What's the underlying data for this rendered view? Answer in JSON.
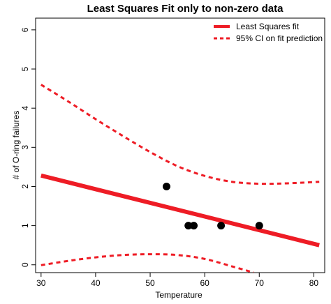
{
  "chart_data": {
    "type": "scatter",
    "title": "Least Squares Fit only to non-zero data",
    "xlabel": "Temperature",
    "ylabel": "# of O-ring failures",
    "xlim": [
      29,
      82
    ],
    "ylim": [
      -0.2,
      6.3
    ],
    "x_ticks": [
      30,
      40,
      50,
      60,
      70,
      80
    ],
    "y_ticks": [
      0,
      1,
      2,
      3,
      4,
      5,
      6
    ],
    "grid": false,
    "legend_position": "top-right",
    "colors": {
      "fit": "#ee1c25",
      "points": "#000000"
    },
    "points": {
      "x": [
        53,
        57,
        58,
        63,
        70
      ],
      "y": [
        2,
        1,
        1,
        1,
        1
      ]
    },
    "series": [
      {
        "name": "Least Squares fit",
        "style": "solid",
        "x": [
          30,
          81
        ],
        "y": [
          2.28,
          0.5
        ]
      },
      {
        "name": "95% CI on fit prediction",
        "style": "dashed",
        "x": [
          30,
          35,
          40,
          45,
          50,
          55,
          60,
          65,
          70,
          75,
          81
        ],
        "y": [
          4.6,
          4.17,
          3.72,
          3.29,
          2.88,
          2.52,
          2.27,
          2.12,
          2.07,
          2.08,
          2.12
        ]
      },
      {
        "name": "95% CI lower",
        "style": "dashed",
        "x": [
          30,
          35,
          40,
          45,
          50,
          55,
          60,
          65,
          69
        ],
        "y": [
          -0.01,
          0.1,
          0.19,
          0.25,
          0.27,
          0.25,
          0.15,
          -0.04,
          -0.2
        ]
      }
    ],
    "legend": [
      {
        "label": "Least Squares fit",
        "style": "solid"
      },
      {
        "label": "95% CI on fit prediction",
        "style": "dashed"
      }
    ]
  }
}
